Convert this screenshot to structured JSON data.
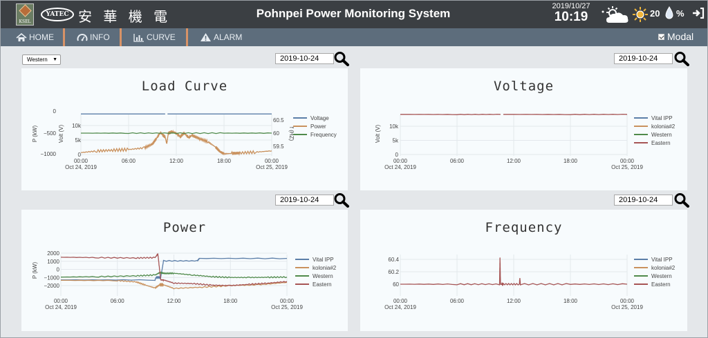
{
  "header": {
    "ksel_logo_text": "KSEL",
    "yatec_logo_text": "YATEC",
    "company_name": "安 華 機 電",
    "app_title": "Pohnpei Power Monitoring System",
    "date": "2019/10/27",
    "time": "10:19",
    "temperature": "20",
    "humidity": "%"
  },
  "nav": {
    "items": [
      {
        "label": "HOME",
        "icon": "home-icon"
      },
      {
        "label": "INFO",
        "icon": "gauge-icon"
      },
      {
        "label": "CURVE",
        "icon": "bar-chart-icon"
      },
      {
        "label": "ALARM",
        "icon": "warning-icon"
      }
    ],
    "modal_label": "Modal",
    "modal_checked": true
  },
  "controls": {
    "site_select": "Western",
    "date_load": "2019-10-24",
    "date_voltage": "2019-10-24",
    "date_power": "2019-10-24",
    "date_frequency": "2019-10-24"
  },
  "colors": {
    "series_blue": "#5b7ea8",
    "series_orange": "#c9915d",
    "series_green": "#4f8a4a",
    "series_red": "#a65454",
    "grid": "#e3e8ec",
    "nav_separator": "#d89367"
  },
  "chart_data": [
    {
      "type": "line",
      "title": "Load Curve",
      "x_tick_labels": [
        "00:00",
        "06:00",
        "12:00",
        "18:00",
        "00:00"
      ],
      "x_start_label": "Oct 24, 2019",
      "x_end_label": "Oct 25, 2019",
      "axes": {
        "power": {
          "label": "P (kW)",
          "ticks": [
            "0",
            "−500",
            "−1000"
          ],
          "range": [
            -1100,
            100
          ]
        },
        "voltage": {
          "label": "Volt (V)",
          "ticks": [
            "10k",
            "5k",
            "0"
          ],
          "range": [
            0,
            16000
          ]
        },
        "frequency": {
          "label": "f (HZ)",
          "ticks": [
            "60.5",
            "60",
            "59.5"
          ],
          "range": [
            59.3,
            60.7
          ]
        }
      },
      "legend": [
        "Voltage",
        "Power",
        "Frequency"
      ],
      "legend_position": "right",
      "series": [
        {
          "name": "Voltage",
          "axis": "voltage",
          "x": [
            0,
            6,
            10.6
          ],
          "y": [
            14000,
            14000,
            14000
          ]
        },
        {
          "name": "Voltage",
          "axis": "voltage",
          "x": [
            10.9,
            18,
            24
          ],
          "y": [
            14000,
            14000,
            14000
          ]
        },
        {
          "name": "Power",
          "axis": "power",
          "x": [
            0,
            2,
            4,
            6,
            8,
            9,
            9.5,
            10,
            10.3,
            10.6,
            10.8,
            11,
            11.5,
            12,
            12.5,
            13,
            13.5,
            14,
            15,
            16,
            17,
            17.5,
            18,
            19,
            20,
            22,
            24
          ],
          "y": [
            -970,
            -935,
            -915,
            -900,
            -860,
            -770,
            -640,
            -500,
            -560,
            -610,
            -760,
            -520,
            -480,
            -520,
            -600,
            -510,
            -620,
            -570,
            -650,
            -720,
            -850,
            -950,
            -1000,
            -990,
            -980,
            -960,
            -930
          ]
        },
        {
          "name": "Frequency",
          "axis": "frequency",
          "x": [
            0,
            6,
            12,
            18,
            24
          ],
          "y": [
            60,
            60,
            60,
            60,
            60
          ]
        }
      ]
    },
    {
      "type": "line",
      "title": "Voltage",
      "ylabel": "Volt (V)",
      "y_ticks": [
        "10k",
        "5k",
        "0"
      ],
      "ylim": [
        0,
        15500
      ],
      "x_tick_labels": [
        "00:00",
        "06:00",
        "12:00",
        "18:00",
        "00:00"
      ],
      "x_start_label": "Oct 24, 2019",
      "x_end_label": "Oct 25, 2019",
      "legend": [
        "Vital IPP",
        "kolonia#2",
        "Western",
        "Eastern"
      ],
      "legend_position": "right",
      "series": [
        {
          "name": "Eastern",
          "x": [
            0,
            6,
            10.6
          ],
          "y": [
            14200,
            14150,
            14200
          ]
        },
        {
          "name": "Eastern",
          "x": [
            10.9,
            18,
            24
          ],
          "y": [
            14200,
            14150,
            14200
          ]
        }
      ]
    },
    {
      "type": "line",
      "title": "Power",
      "ylabel": "P (kW)",
      "y_ticks": [
        "2000",
        "1000",
        "0",
        "−1000",
        "−2000"
      ],
      "ylim": [
        -2600,
        2500
      ],
      "x_tick_labels": [
        "00:00",
        "06:00",
        "12:00",
        "18:00",
        "00:00"
      ],
      "x_start_label": "Oct 24, 2019",
      "x_end_label": "Oct 25, 2019",
      "legend": [
        "Vital IPP",
        "kolonia#2",
        "Western",
        "Eastern"
      ],
      "legend_position": "right",
      "series": [
        {
          "name": "Vital IPP",
          "x": [
            0,
            10,
            10.1,
            10.6,
            10.9,
            14.5,
            14.7,
            24
          ],
          "y": [
            -1300,
            -1300,
            -1000,
            -1000,
            1050,
            1050,
            1350,
            1350
          ]
        },
        {
          "name": "kolonia#2",
          "x": [
            0,
            6,
            8,
            9,
            10,
            10.5,
            10.9,
            12,
            15,
            18,
            21,
            24
          ],
          "y": [
            -1350,
            -1380,
            -1550,
            -1950,
            -2300,
            -1900,
            -1900,
            -2350,
            -2200,
            -2000,
            -1900,
            -1600
          ]
        },
        {
          "name": "Western",
          "x": [
            0,
            4,
            8,
            10,
            10.5,
            11,
            12,
            14,
            16,
            18,
            20,
            22,
            24
          ],
          "y": [
            -950,
            -900,
            -800,
            -700,
            -400,
            -500,
            -480,
            -700,
            -900,
            -1000,
            -1000,
            -980,
            -950
          ]
        },
        {
          "name": "Eastern",
          "x": [
            0,
            4,
            8,
            10,
            10.3,
            10.6,
            10.9,
            12,
            14,
            16,
            18,
            20,
            22,
            24
          ],
          "y": [
            1500,
            1450,
            1400,
            1450,
            1900,
            -1300,
            -1300,
            -1700,
            -1750,
            -1950,
            -2000,
            -1850,
            -1700,
            -1500
          ]
        }
      ]
    },
    {
      "type": "line",
      "title": "Frequency",
      "y_ticks": [
        "60.4",
        "60.2",
        "60"
      ],
      "ylim": [
        59.88,
        60.46
      ],
      "x_tick_labels": [
        "00:00",
        "06:00",
        "12:00",
        "18:00",
        "00:00"
      ],
      "x_start_label": "Oct 24, 2019",
      "x_end_label": "Oct 25, 2019",
      "legend": [
        "Vital IPP",
        "kolonia#2",
        "Western",
        "Eastern"
      ],
      "legend_position": "right",
      "series": [
        {
          "name": "Eastern",
          "x": [
            0,
            6,
            10.5,
            10.55,
            10.6,
            10.9,
            12.6,
            12.65,
            12.7,
            18,
            24
          ],
          "y": [
            60,
            60,
            60,
            60.43,
            60,
            60,
            60,
            60.1,
            60,
            60,
            60
          ]
        }
      ]
    }
  ]
}
